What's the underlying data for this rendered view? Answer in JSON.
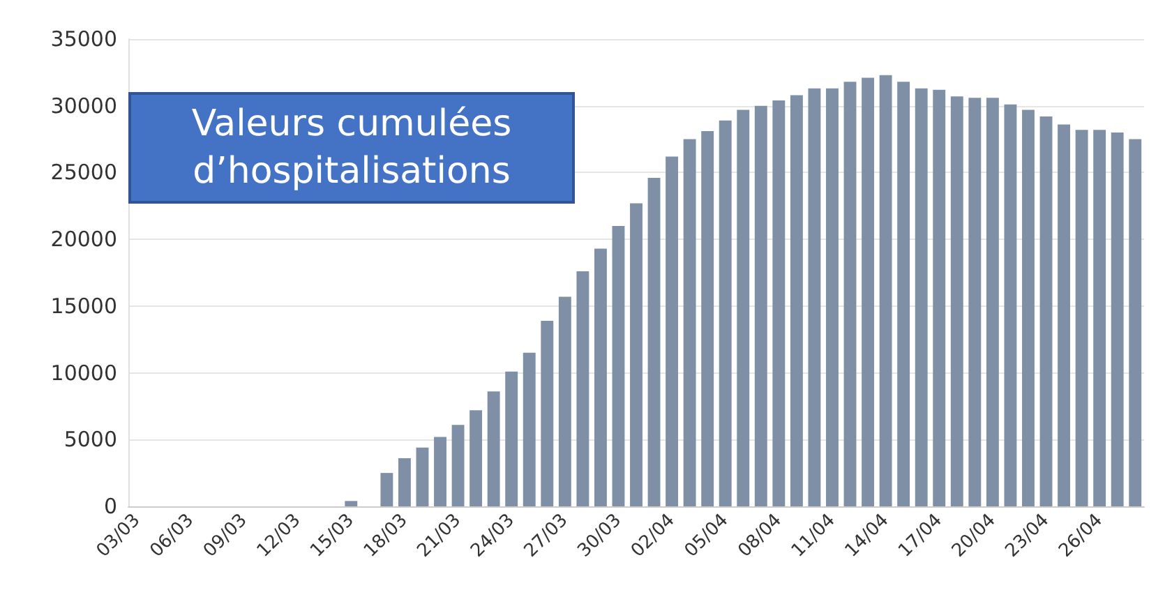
{
  "chart_data": {
    "type": "bar",
    "categories": [
      "03/03",
      null,
      null,
      "06/03",
      null,
      null,
      "09/03",
      null,
      null,
      "12/03",
      null,
      null,
      "15/03",
      null,
      null,
      "18/03",
      null,
      null,
      "21/03",
      null,
      null,
      "24/03",
      null,
      null,
      "27/03",
      null,
      null,
      "30/03",
      null,
      null,
      "02/04",
      null,
      null,
      "05/04",
      null,
      null,
      "08/04",
      null,
      null,
      "11/04",
      null,
      null,
      "14/04",
      null,
      null,
      "17/04",
      null,
      null,
      "20/04",
      null,
      null,
      "23/04",
      null,
      null,
      "26/04",
      null,
      null
    ],
    "values": [
      0,
      0,
      0,
      0,
      0,
      0,
      0,
      0,
      0,
      0,
      0,
      0,
      400,
      0,
      2500,
      3600,
      4400,
      5200,
      6100,
      7200,
      8600,
      10100,
      11500,
      13900,
      15700,
      17600,
      19300,
      21000,
      22700,
      24600,
      26200,
      27500,
      28100,
      28900,
      29700,
      30000,
      30400,
      30800,
      31300,
      31300,
      31800,
      32100,
      32300,
      31800,
      31300,
      31200,
      30700,
      30600,
      30600,
      30100,
      29700,
      29200,
      28600,
      28200,
      28200,
      28000,
      27500
    ],
    "color": "#7f8fa6",
    "ylim": [
      0,
      35000
    ],
    "yticks": [
      0,
      5000,
      10000,
      15000,
      20000,
      25000,
      30000,
      35000
    ],
    "grid": "y",
    "annotations": [
      "Valeurs cumulées d’hospitalisations"
    ]
  }
}
